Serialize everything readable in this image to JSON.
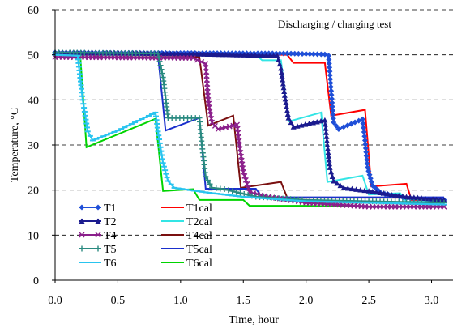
{
  "chart_data": {
    "type": "line",
    "title": "Discharging / charging test",
    "xlabel": "Time, hour",
    "ylabel": "Temperature, °C",
    "xlim": [
      0,
      3.1
    ],
    "ylim": [
      0,
      60
    ],
    "xticks": [
      "0.0",
      "0.5",
      "1.0",
      "1.5",
      "2.0",
      "2.5",
      "3.0"
    ],
    "yticks": [
      "0",
      "10",
      "20",
      "30",
      "40",
      "50",
      "60"
    ],
    "grid": "horizontal dashed",
    "legend_placement": "bottom-left",
    "series": [
      {
        "name": "T1",
        "color": "#1f4fd8",
        "marker": "diamond",
        "x": [
          0,
          1.85,
          2.15,
          2.18,
          2.2,
          2.22,
          2.26,
          2.3,
          2.45,
          2.47,
          2.49,
          2.53,
          2.6,
          2.8,
          3.1
        ],
        "y": [
          50.5,
          50.3,
          50.1,
          49.8,
          42,
          35,
          33.5,
          34,
          35.7,
          31,
          25,
          21,
          19.3,
          18.2,
          17.8
        ]
      },
      {
        "name": "T2",
        "color": "#1b1b8f",
        "marker": "triangle",
        "x": [
          0,
          1.1,
          1.77,
          1.8,
          1.83,
          1.86,
          1.9,
          2.15,
          2.17,
          2.19,
          2.22,
          2.3,
          2.5,
          2.8,
          3.1
        ],
        "y": [
          50.5,
          50.2,
          49.8,
          47,
          41,
          36,
          34,
          35.5,
          30,
          25,
          22,
          20.5,
          19.8,
          18.5,
          17.8
        ]
      },
      {
        "name": "T4",
        "color": "#8b1f8b",
        "marker": "x",
        "x": [
          0,
          1.1,
          1.2,
          1.22,
          1.25,
          1.3,
          1.45,
          1.47,
          1.5,
          1.55,
          1.7,
          2.0,
          2.5,
          3.1
        ],
        "y": [
          49.5,
          49.3,
          48,
          40,
          35,
          33.5,
          34.5,
          30,
          24,
          19.5,
          18.5,
          17.2,
          16.3,
          16.3
        ]
      },
      {
        "name": "T5",
        "color": "#2a8a80",
        "marker": "plus",
        "x": [
          0,
          0.82,
          0.86,
          0.9,
          1.15,
          1.17,
          1.2,
          1.25,
          1.35,
          1.6,
          2.0,
          2.5,
          3.1
        ],
        "y": [
          50.5,
          50.3,
          45,
          36,
          36,
          30,
          23,
          20.5,
          20.2,
          18.5,
          17.8,
          17.5,
          17.2
        ]
      },
      {
        "name": "T6",
        "color": "#29c4ef",
        "marker": "dash",
        "x": [
          0,
          0.18,
          0.22,
          0.26,
          0.3,
          0.5,
          0.8,
          0.82,
          0.86,
          0.9,
          0.95,
          1.2,
          1.5,
          2.0,
          2.5,
          3.1
        ],
        "y": [
          50,
          49.8,
          40,
          33,
          31,
          33.2,
          37.2,
          33,
          26,
          22,
          20.5,
          19.5,
          18.5,
          17.5,
          17.2,
          16.8
        ]
      },
      {
        "name": "T1cal",
        "color": "#ff0000",
        "marker": "none",
        "x": [
          0,
          1.85,
          1.9,
          2.15,
          2.2,
          2.47,
          2.52,
          2.8,
          2.84,
          3.1
        ],
        "y": [
          50,
          50,
          48.2,
          48.2,
          36.5,
          37.8,
          20.8,
          21.4,
          17.8,
          17.8
        ]
      },
      {
        "name": "T2cal",
        "color": "#33e5e5",
        "marker": "none",
        "x": [
          0,
          1.6,
          1.65,
          1.8,
          1.86,
          2.12,
          2.17,
          2.45,
          2.5,
          2.75,
          2.8,
          3.1
        ],
        "y": [
          50,
          50,
          48.8,
          48.8,
          35.2,
          37.2,
          21.8,
          23.2,
          19,
          19.3,
          17.4,
          17.4
        ]
      },
      {
        "name": "T4cal",
        "color": "#7a1010",
        "marker": "none",
        "x": [
          0,
          1.15,
          1.22,
          1.42,
          1.48,
          1.8,
          1.85,
          3.1
        ],
        "y": [
          49.5,
          49.5,
          34.3,
          36.5,
          20.5,
          21.8,
          18.3,
          18.3
        ]
      },
      {
        "name": "T5cal",
        "color": "#1a2fcc",
        "marker": "none",
        "x": [
          0,
          0.82,
          0.88,
          1.15,
          1.2,
          1.6,
          1.65,
          2.5,
          3.1
        ],
        "y": [
          50,
          50,
          33.2,
          36,
          20.3,
          20.3,
          18.4,
          18.4,
          18.4
        ]
      },
      {
        "name": "T6cal",
        "color": "#00d400",
        "marker": "none",
        "x": [
          0,
          0.2,
          0.25,
          0.8,
          0.86,
          1.1,
          1.15,
          1.5,
          1.55,
          2.0,
          2.5,
          3.1
        ],
        "y": [
          50,
          50,
          29.5,
          35.8,
          19.8,
          20.2,
          17.8,
          17.8,
          16.5,
          16.5,
          16.3,
          16.3
        ]
      }
    ]
  }
}
